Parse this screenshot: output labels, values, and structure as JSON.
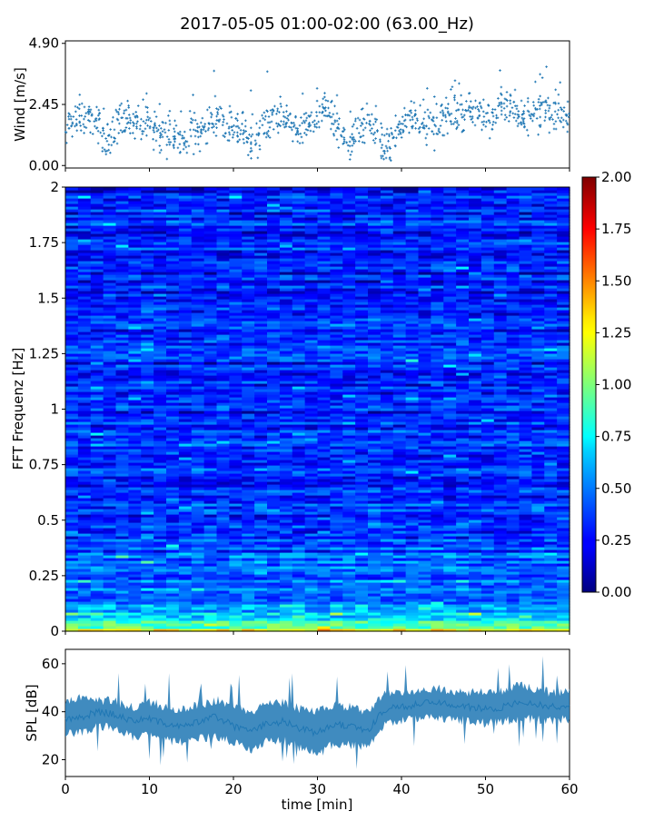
{
  "figure": {
    "title": "2017-05-05 01:00-02:00 (63.00_Hz)"
  },
  "chart_data": [
    {
      "id": "wind",
      "type": "scatter",
      "title": "",
      "xlabel": "",
      "ylabel": "Wind [m/s]",
      "xlim": [
        0,
        60
      ],
      "ylim": [
        -0.1,
        5.0
      ],
      "yticks": [
        0.0,
        2.45,
        4.9
      ],
      "ytick_labels": [
        "0.00",
        "2.45",
        "4.90"
      ],
      "marker_color": "#1f77b4",
      "x": [
        0,
        1,
        2,
        3,
        4,
        5,
        6,
        7,
        8,
        9,
        10,
        11,
        12,
        13,
        14,
        15,
        16,
        17,
        18,
        19,
        20,
        21,
        22,
        23,
        24,
        25,
        26,
        27,
        28,
        29,
        30,
        31,
        32,
        33,
        34,
        35,
        36,
        37,
        38,
        39,
        40,
        41,
        42,
        43,
        44,
        45,
        46,
        47,
        48,
        49,
        50,
        51,
        52,
        53,
        54,
        55,
        56,
        57,
        58,
        59,
        60
      ],
      "y": [
        1.2,
        1.9,
        2.1,
        1.8,
        1.6,
        1.1,
        1.4,
        1.7,
        1.9,
        1.8,
        1.6,
        1.3,
        1.2,
        1.1,
        1.0,
        1.2,
        1.3,
        1.7,
        2.0,
        1.6,
        1.5,
        1.2,
        0.9,
        1.1,
        1.8,
        2.0,
        1.7,
        1.5,
        1.4,
        1.6,
        1.9,
        2.3,
        1.8,
        1.2,
        1.0,
        1.4,
        1.9,
        1.2,
        0.7,
        0.9,
        1.6,
        2.1,
        1.9,
        1.7,
        1.5,
        1.9,
        2.2,
        2.0,
        2.3,
        2.1,
        1.8,
        1.9,
        2.6,
        2.4,
        2.1,
        1.9,
        2.2,
        2.0,
        2.3,
        2.1,
        1.7
      ],
      "series_spread": 0.55
    },
    {
      "id": "spectrogram",
      "type": "heatmap",
      "title": "",
      "xlabel": "",
      "ylabel": "FFT Frequenz [Hz]",
      "xlim": [
        0,
        60
      ],
      "ylim": [
        0,
        2
      ],
      "yticks": [
        0,
        0.25,
        0.5,
        0.75,
        1,
        1.25,
        1.5,
        1.75,
        2
      ],
      "ytick_labels": [
        "0",
        "0.25",
        "0.5",
        "0.75",
        "1",
        "1.25",
        "1.5",
        "1.75",
        "2"
      ],
      "colormap": "jet",
      "color_range": [
        0.0,
        2.0
      ],
      "colorbar_ticks": [
        "0.00",
        "0.25",
        "0.50",
        "0.75",
        "1.00",
        "1.25",
        "1.50",
        "1.75",
        "2.00"
      ],
      "mean_level_by_frequency": [
        {
          "freq": 0.0,
          "level": 1.4
        },
        {
          "freq": 0.02,
          "level": 1.0
        },
        {
          "freq": 0.05,
          "level": 0.75
        },
        {
          "freq": 0.1,
          "level": 0.55
        },
        {
          "freq": 0.25,
          "level": 0.42
        },
        {
          "freq": 0.5,
          "level": 0.35
        },
        {
          "freq": 1.0,
          "level": 0.3
        },
        {
          "freq": 1.5,
          "level": 0.28
        },
        {
          "freq": 2.0,
          "level": 0.27
        }
      ]
    },
    {
      "id": "spl",
      "type": "area",
      "title": "",
      "xlabel": "time [min]",
      "ylabel": "SPL [dB]",
      "xlim": [
        0,
        60
      ],
      "ylim": [
        13,
        66
      ],
      "yticks": [
        20,
        40,
        60
      ],
      "ytick_labels": [
        "20",
        "40",
        "60"
      ],
      "xticks": [
        0,
        10,
        20,
        30,
        40,
        50,
        60
      ],
      "xtick_labels": [
        "0",
        "10",
        "20",
        "30",
        "40",
        "50",
        "60"
      ],
      "color": "#1f77b4",
      "x": [
        0,
        2,
        4,
        6,
        8,
        10,
        12,
        14,
        16,
        18,
        20,
        22,
        24,
        26,
        28,
        30,
        32,
        34,
        36,
        38,
        40,
        42,
        44,
        46,
        48,
        50,
        52,
        54,
        56,
        58,
        60
      ],
      "mean": [
        37,
        38,
        40,
        39,
        36,
        37,
        35,
        34,
        36,
        38,
        34,
        32,
        35,
        36,
        33,
        31,
        35,
        34,
        32,
        41,
        42,
        43,
        44,
        43,
        42,
        41,
        42,
        44,
        43,
        42,
        43
      ],
      "upper": [
        44,
        46,
        45,
        44,
        42,
        44,
        42,
        41,
        43,
        45,
        42,
        40,
        43,
        44,
        41,
        40,
        43,
        42,
        40,
        47,
        48,
        49,
        50,
        49,
        48,
        48,
        49,
        51,
        49,
        48,
        49
      ],
      "lower": [
        31,
        31,
        34,
        33,
        29,
        30,
        28,
        27,
        29,
        30,
        27,
        24,
        28,
        28,
        25,
        22,
        27,
        26,
        25,
        35,
        36,
        37,
        38,
        37,
        36,
        35,
        36,
        37,
        37,
        36,
        37
      ]
    }
  ]
}
